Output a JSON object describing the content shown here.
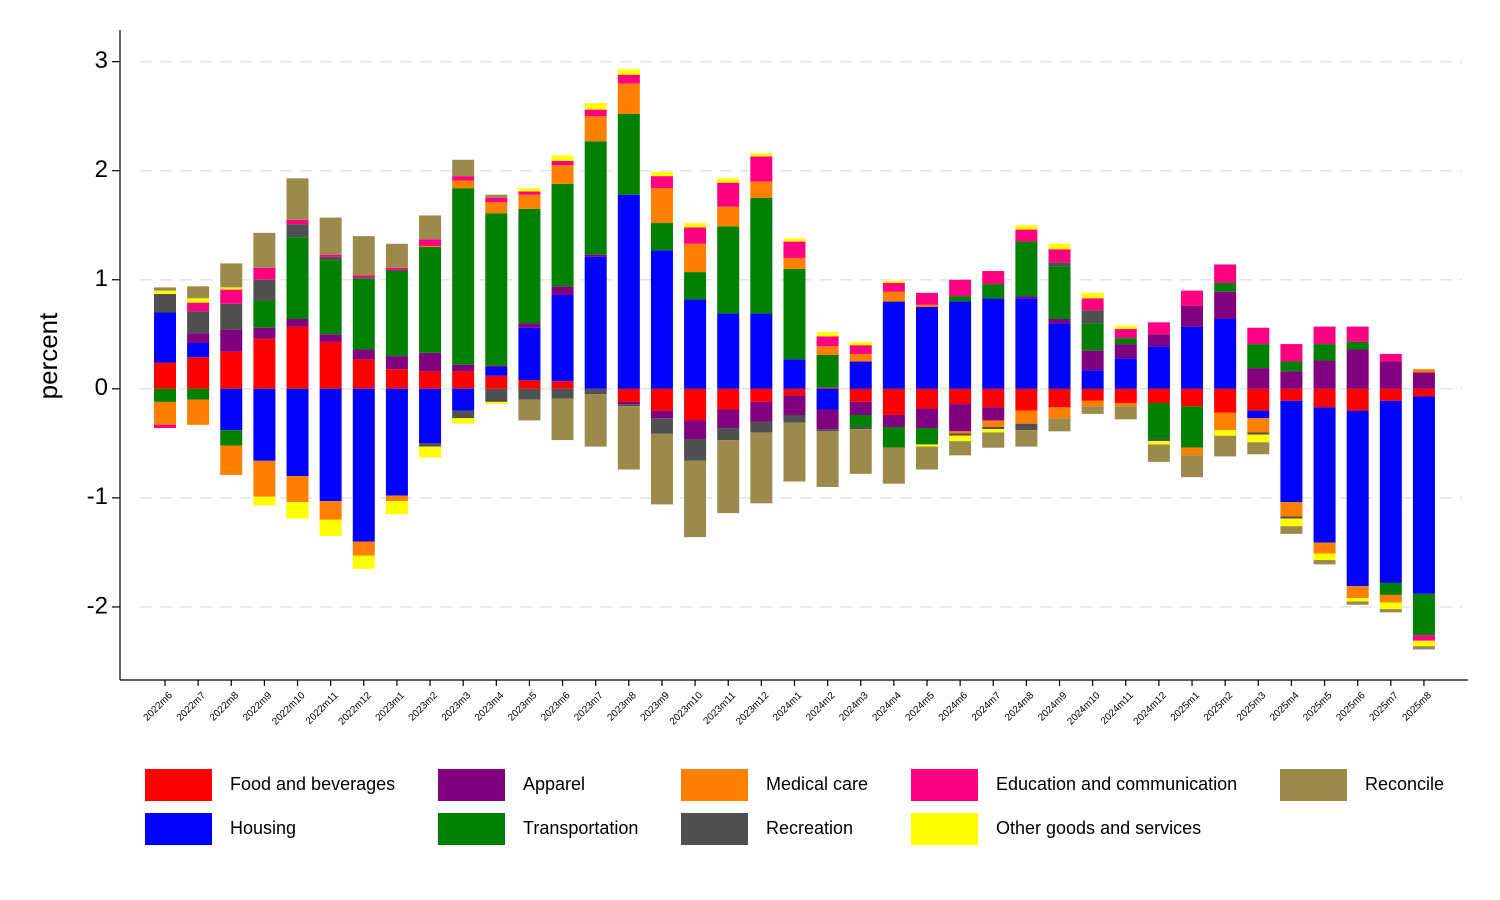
{
  "chart_data": {
    "type": "stacked_bar",
    "y_label": "percent",
    "categories": [
      "2022m6",
      "2022m7",
      "2022m8",
      "2022m9",
      "2022m10",
      "2022m11",
      "2022m12",
      "2023m1",
      "2023m2",
      "2023m3",
      "2023m4",
      "2023m5",
      "2023m6",
      "2023m7",
      "2023m8",
      "2023m9",
      "2023m10",
      "2023m11",
      "2023m12",
      "2024m1",
      "2024m2",
      "2024m3",
      "2024m4",
      "2024m5",
      "2024m6",
      "2024m7",
      "2024m8",
      "2024m9",
      "2024m10",
      "2024m11",
      "2024m12",
      "2025m1",
      "2025m2",
      "2025m3",
      "2025m4",
      "2025m5",
      "2025m6",
      "2025m7",
      "2025m8"
    ],
    "series": [
      {
        "name": "Food and beverages",
        "color": "#ff0000",
        "values": [
          0.24,
          0.29,
          0.34,
          0.46,
          0.57,
          0.43,
          0.27,
          0.18,
          0.16,
          0.16,
          0.12,
          0.08,
          0.07,
          0,
          -0.12,
          -0.2,
          -0.29,
          -0.19,
          -0.12,
          -0.06,
          0.01,
          -0.12,
          -0.24,
          -0.18,
          -0.14,
          -0.17,
          -0.2,
          -0.17,
          -0.11,
          -0.13,
          -0.13,
          -0.16,
          -0.22,
          -0.2,
          -0.11,
          -0.17,
          -0.2,
          -0.11,
          -0.07
        ]
      },
      {
        "name": "Housing",
        "color": "#0000ff",
        "values": [
          0.46,
          0.13,
          -0.38,
          -0.66,
          -0.8,
          -1.03,
          -1.4,
          -0.98,
          -0.5,
          -0.2,
          0.08,
          0.48,
          0.79,
          1.21,
          1.78,
          1.27,
          0.82,
          0.69,
          0.69,
          0.27,
          -0.19,
          0.25,
          0.8,
          0.75,
          0.8,
          0.83,
          0.83,
          0.6,
          0.17,
          0.28,
          0.39,
          0.57,
          0.64,
          -0.07,
          -0.93,
          -1.24,
          -1.61,
          -1.67,
          -1.81
        ]
      },
      {
        "name": "Apparel",
        "color": "#800080",
        "values": [
          0,
          0.09,
          0.2,
          0.1,
          0.07,
          0.07,
          0.09,
          0.12,
          0.17,
          0.06,
          0.01,
          0.04,
          0.08,
          0.02,
          -0.02,
          -0.07,
          -0.17,
          -0.17,
          -0.18,
          -0.18,
          -0.18,
          -0.12,
          -0.11,
          -0.18,
          -0.25,
          -0.12,
          0.02,
          0.04,
          0.18,
          0.13,
          0.11,
          0.19,
          0.25,
          0.19,
          0.16,
          0.26,
          0.36,
          0.25,
          0.15
        ]
      },
      {
        "name": "Transportation",
        "color": "#008000",
        "values": [
          -0.12,
          -0.1,
          -0.14,
          0.25,
          0.75,
          0.68,
          0.65,
          0.78,
          0.97,
          1.62,
          1.4,
          1.05,
          0.94,
          1.04,
          0.74,
          0.25,
          0.25,
          0.8,
          1.06,
          0.83,
          0.3,
          -0.11,
          -0.19,
          -0.15,
          0.05,
          0.13,
          0.5,
          0.48,
          0.25,
          0.05,
          -0.33,
          -0.38,
          0.08,
          0.22,
          0.09,
          0.15,
          0.07,
          -0.11,
          -0.38
        ]
      },
      {
        "name": "Medical care",
        "color": "#ff8000",
        "values": [
          -0.21,
          -0.23,
          -0.27,
          -0.33,
          -0.24,
          -0.17,
          -0.13,
          -0.05,
          0.01,
          0.07,
          0.1,
          0.13,
          0.17,
          0.23,
          0.28,
          0.32,
          0.26,
          0.18,
          0.15,
          0.1,
          0.08,
          0.07,
          0.09,
          0.02,
          -0.02,
          -0.06,
          -0.12,
          -0.1,
          -0.05,
          -0.03,
          0,
          -0.07,
          -0.16,
          -0.13,
          -0.13,
          -0.1,
          -0.11,
          -0.07,
          0.03
        ]
      },
      {
        "name": "Recreation",
        "color": "#505050",
        "values": [
          0.17,
          0.2,
          0.24,
          0.19,
          0.12,
          0.03,
          0.01,
          0.01,
          -0.03,
          -0.07,
          -0.12,
          -0.1,
          -0.09,
          -0.05,
          -0.02,
          -0.14,
          -0.2,
          -0.11,
          -0.1,
          -0.07,
          -0.02,
          -0.02,
          0,
          0,
          -0.02,
          -0.02,
          -0.06,
          0.04,
          0.12,
          0.01,
          -0.02,
          0,
          0,
          -0.02,
          -0.02,
          0,
          0,
          0,
          0
        ]
      },
      {
        "name": "Education and communication",
        "color": "#ff0080",
        "values": [
          -0.03,
          0.08,
          0.13,
          0.11,
          0.04,
          0.02,
          0.02,
          0.02,
          0.06,
          0.04,
          0.04,
          0.03,
          0.04,
          0.06,
          0.08,
          0.11,
          0.15,
          0.22,
          0.23,
          0.15,
          0.09,
          0.08,
          0.08,
          0.11,
          0.15,
          0.12,
          0.11,
          0.12,
          0.11,
          0.08,
          0.11,
          0.14,
          0.17,
          0.15,
          0.16,
          0.16,
          0.14,
          0.07,
          -0.05
        ]
      },
      {
        "name": "Other goods and services",
        "color": "#ffff00",
        "values": [
          0.03,
          0.04,
          0.02,
          -0.08,
          -0.15,
          -0.15,
          -0.12,
          -0.12,
          -0.1,
          -0.05,
          -0.02,
          0.03,
          0.05,
          0.06,
          0.05,
          0.04,
          0.04,
          0.04,
          0.03,
          0.03,
          0.04,
          0.03,
          0.02,
          -0.02,
          -0.05,
          -0.03,
          0.04,
          0.05,
          0.05,
          0.03,
          -0.03,
          0,
          -0.05,
          -0.07,
          -0.07,
          -0.06,
          -0.03,
          -0.06,
          -0.05
        ]
      },
      {
        "name": "Reconcile",
        "color": "#9c8a4d",
        "values": [
          0.03,
          0.11,
          0.22,
          0.32,
          0.38,
          0.34,
          0.36,
          0.22,
          0.22,
          0.15,
          0.03,
          -0.19,
          -0.38,
          -0.48,
          -0.58,
          -0.65,
          -0.7,
          -0.67,
          -0.65,
          -0.54,
          -0.51,
          -0.41,
          -0.33,
          -0.21,
          -0.13,
          -0.14,
          -0.15,
          -0.12,
          -0.07,
          -0.12,
          -0.16,
          -0.2,
          -0.19,
          -0.11,
          -0.07,
          -0.04,
          -0.03,
          -0.03,
          -0.03
        ]
      }
    ],
    "ylim": [
      -2.67,
      3.29
    ],
    "yticks": [
      -2,
      -1,
      0,
      1,
      2,
      3
    ],
    "grid": true
  }
}
